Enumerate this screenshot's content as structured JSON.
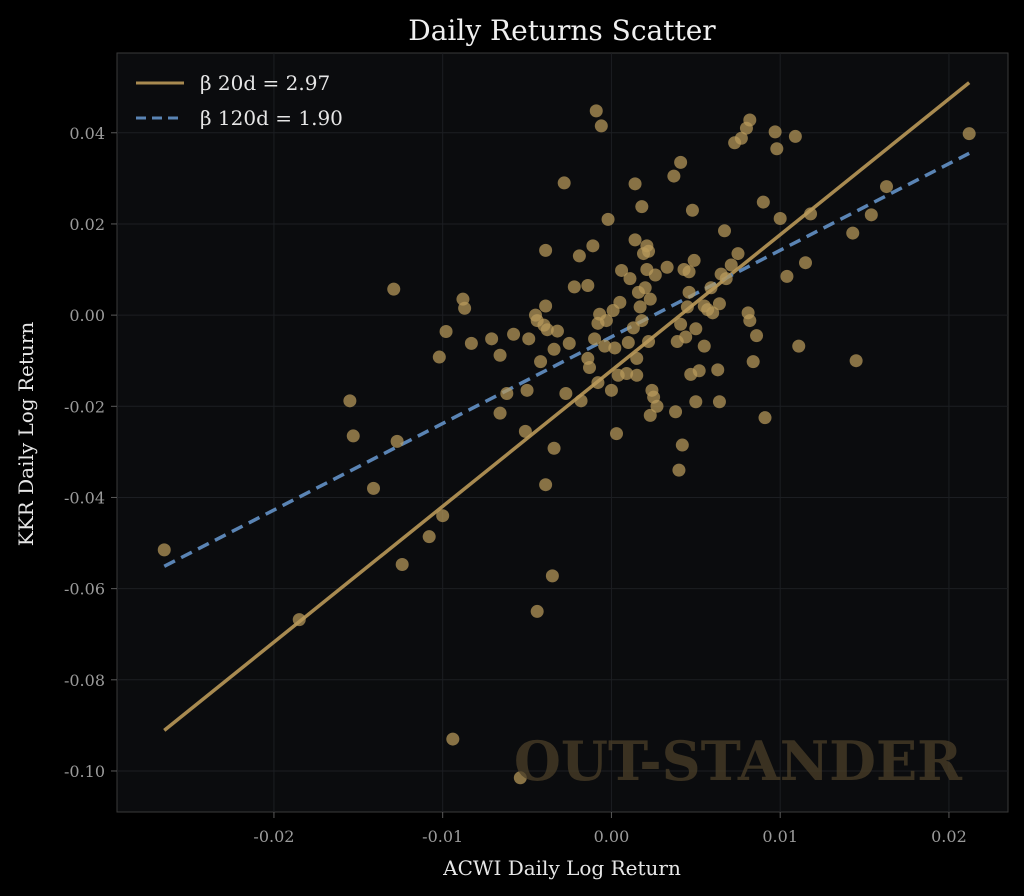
{
  "chart_data": {
    "type": "scatter",
    "title": "Daily Returns Scatter",
    "xlabel": "ACWI Daily Log Return",
    "ylabel": "KKR Daily Log Return",
    "xlim": [
      -0.0293,
      0.0235
    ],
    "ylim": [
      -0.109,
      0.0575
    ],
    "xticks": [
      -0.02,
      -0.01,
      0.0,
      0.01,
      0.02
    ],
    "xtick_labels": [
      "-0.02",
      "-0.01",
      "0.00",
      "0.01",
      "0.02"
    ],
    "yticks": [
      -0.1,
      -0.08,
      -0.06,
      -0.04,
      -0.02,
      0.0,
      0.02,
      0.04
    ],
    "ytick_labels": [
      "-0.10",
      "-0.08",
      "-0.06",
      "-0.04",
      "-0.02",
      "0.00",
      "0.02",
      "0.04"
    ],
    "grid": true,
    "legend_position": "top-left",
    "watermark": "OUT-STANDER",
    "colors": {
      "background": "#0b0c0e",
      "figure": "#000000",
      "points": "#b89a5c",
      "beta20": "#a88a50",
      "beta120": "#5a84b4"
    },
    "lines": [
      {
        "name": "β 20d = 2.97",
        "style": "solid",
        "color": "#a88a50",
        "x": [
          -0.0265,
          0.0212
        ],
        "y": [
          -0.0911,
          0.051
        ]
      },
      {
        "name": "β 120d = 1.90",
        "style": "dashed",
        "color": "#5a84b4",
        "x": [
          -0.0265,
          0.0212
        ],
        "y": [
          -0.0551,
          0.0355
        ]
      }
    ],
    "points": [
      [
        -0.0265,
        -0.0515
      ],
      [
        -0.0185,
        -0.0668
      ],
      [
        -0.0155,
        -0.0188
      ],
      [
        -0.0153,
        -0.0265
      ],
      [
        -0.0141,
        -0.038
      ],
      [
        -0.0129,
        0.0057
      ],
      [
        -0.0127,
        -0.0277
      ],
      [
        -0.0124,
        -0.0547
      ],
      [
        -0.0108,
        -0.0486
      ],
      [
        -0.0102,
        -0.0092
      ],
      [
        -0.01,
        -0.044
      ],
      [
        -0.0098,
        -0.0036
      ],
      [
        -0.0094,
        -0.093
      ],
      [
        -0.0088,
        0.0035
      ],
      [
        -0.0087,
        0.0015
      ],
      [
        -0.0083,
        -0.0062
      ],
      [
        -0.0071,
        -0.0052
      ],
      [
        -0.0066,
        -0.0088
      ],
      [
        -0.0066,
        -0.0215
      ],
      [
        -0.0062,
        -0.0172
      ],
      [
        -0.0058,
        -0.0042
      ],
      [
        -0.0054,
        -0.1015
      ],
      [
        -0.0051,
        -0.0255
      ],
      [
        -0.005,
        -0.0165
      ],
      [
        -0.0049,
        -0.0052
      ],
      [
        -0.0045,
        0.0
      ],
      [
        -0.0044,
        -0.065
      ],
      [
        -0.0044,
        -0.0012
      ],
      [
        -0.0042,
        -0.0102
      ],
      [
        -0.004,
        -0.0022
      ],
      [
        -0.0039,
        0.002
      ],
      [
        -0.0039,
        -0.0372
      ],
      [
        -0.0039,
        0.0142
      ],
      [
        -0.0038,
        -0.0032
      ],
      [
        -0.0035,
        -0.0572
      ],
      [
        -0.0034,
        -0.0292
      ],
      [
        -0.0034,
        -0.0075
      ],
      [
        -0.0032,
        -0.0035
      ],
      [
        -0.0028,
        0.029
      ],
      [
        -0.0027,
        -0.0172
      ],
      [
        -0.0025,
        -0.0062
      ],
      [
        -0.0022,
        0.0062
      ],
      [
        -0.0019,
        0.013
      ],
      [
        -0.0018,
        -0.0188
      ],
      [
        -0.0014,
        0.0065
      ],
      [
        -0.0014,
        -0.0095
      ],
      [
        -0.0013,
        -0.0115
      ],
      [
        -0.0011,
        0.0152
      ],
      [
        -0.001,
        -0.0052
      ],
      [
        -0.0009,
        0.0448
      ],
      [
        -0.0008,
        -0.0148
      ],
      [
        -0.0008,
        -0.0018
      ],
      [
        -0.0007,
        0.0002
      ],
      [
        -0.0006,
        0.0415
      ],
      [
        -0.0004,
        -0.0068
      ],
      [
        -0.0003,
        -0.0012
      ],
      [
        -0.0002,
        0.021
      ],
      [
        0.0,
        -0.0165
      ],
      [
        0.0001,
        0.001
      ],
      [
        0.0002,
        -0.0072
      ],
      [
        0.0003,
        -0.026
      ],
      [
        0.0004,
        -0.0132
      ],
      [
        0.0005,
        0.0028
      ],
      [
        0.0006,
        0.0098
      ],
      [
        0.0009,
        -0.0128
      ],
      [
        0.001,
        -0.006
      ],
      [
        0.0011,
        0.008
      ],
      [
        0.0013,
        -0.0028
      ],
      [
        0.0014,
        0.0288
      ],
      [
        0.0014,
        0.0165
      ],
      [
        0.0015,
        -0.0132
      ],
      [
        0.0015,
        -0.0095
      ],
      [
        0.0016,
        0.005
      ],
      [
        0.0017,
        0.0018
      ],
      [
        0.0018,
        0.0238
      ],
      [
        0.0018,
        -0.0012
      ],
      [
        0.0019,
        0.0135
      ],
      [
        0.002,
        0.006
      ],
      [
        0.0021,
        0.0152
      ],
      [
        0.0021,
        0.01
      ],
      [
        0.0022,
        0.014
      ],
      [
        0.0022,
        -0.0058
      ],
      [
        0.0023,
        0.0035
      ],
      [
        0.0023,
        -0.022
      ],
      [
        0.0024,
        -0.0165
      ],
      [
        0.0025,
        -0.018
      ],
      [
        0.0026,
        0.0088
      ],
      [
        0.0027,
        -0.02
      ],
      [
        0.0033,
        0.0105
      ],
      [
        0.0037,
        0.0305
      ],
      [
        0.0038,
        -0.0212
      ],
      [
        0.0039,
        -0.0058
      ],
      [
        0.004,
        -0.034
      ],
      [
        0.0041,
        0.0335
      ],
      [
        0.0041,
        -0.002
      ],
      [
        0.0042,
        -0.0285
      ],
      [
        0.0043,
        0.01
      ],
      [
        0.0044,
        -0.0048
      ],
      [
        0.0045,
        0.0018
      ],
      [
        0.0046,
        0.005
      ],
      [
        0.0046,
        0.0095
      ],
      [
        0.0047,
        -0.013
      ],
      [
        0.0048,
        0.023
      ],
      [
        0.0049,
        0.012
      ],
      [
        0.005,
        -0.019
      ],
      [
        0.005,
        -0.003
      ],
      [
        0.0052,
        -0.0122
      ],
      [
        0.0055,
        0.002
      ],
      [
        0.0055,
        -0.0068
      ],
      [
        0.0057,
        0.0012
      ],
      [
        0.0059,
        0.006
      ],
      [
        0.006,
        0.0005
      ],
      [
        0.0063,
        -0.012
      ],
      [
        0.0064,
        -0.019
      ],
      [
        0.0064,
        0.0025
      ],
      [
        0.0065,
        0.009
      ],
      [
        0.0067,
        0.0185
      ],
      [
        0.0068,
        0.008
      ],
      [
        0.0071,
        0.011
      ],
      [
        0.0073,
        0.0378
      ],
      [
        0.0075,
        0.0135
      ],
      [
        0.0077,
        0.0388
      ],
      [
        0.008,
        0.041
      ],
      [
        0.0081,
        0.0005
      ],
      [
        0.0082,
        0.0428
      ],
      [
        0.0082,
        -0.0012
      ],
      [
        0.0084,
        -0.0102
      ],
      [
        0.0086,
        -0.0045
      ],
      [
        0.009,
        0.0248
      ],
      [
        0.0091,
        -0.0225
      ],
      [
        0.0097,
        0.0402
      ],
      [
        0.0098,
        0.0365
      ],
      [
        0.01,
        0.0212
      ],
      [
        0.0104,
        0.0085
      ],
      [
        0.0109,
        0.0392
      ],
      [
        0.0111,
        -0.0068
      ],
      [
        0.0115,
        0.0115
      ],
      [
        0.0118,
        0.0222
      ],
      [
        0.0143,
        0.018
      ],
      [
        0.0145,
        -0.01
      ],
      [
        0.0154,
        0.022
      ],
      [
        0.0163,
        0.0282
      ],
      [
        0.0212,
        0.0398
      ]
    ]
  }
}
